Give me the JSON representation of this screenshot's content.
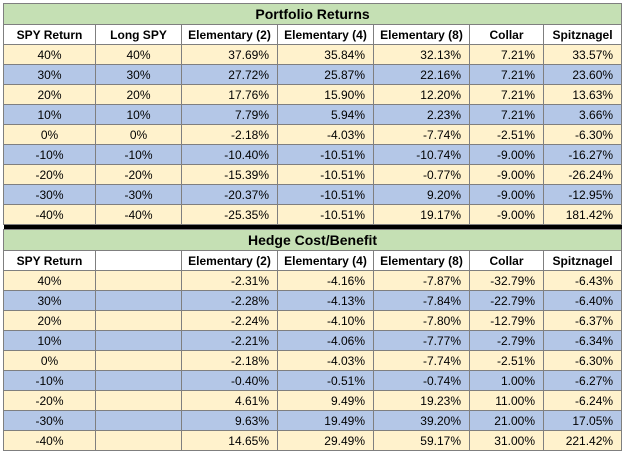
{
  "returns": {
    "title": "Portfolio Returns",
    "headers": [
      "SPY Return",
      "Long SPY",
      "Elementary (2)",
      "Elementary (4)",
      "Elementary (8)",
      "Collar",
      "Spitznagel"
    ],
    "rows": [
      [
        "40%",
        "40%",
        "37.69%",
        "35.84%",
        "32.13%",
        "7.21%",
        "33.57%"
      ],
      [
        "30%",
        "30%",
        "27.72%",
        "25.87%",
        "22.16%",
        "7.21%",
        "23.60%"
      ],
      [
        "20%",
        "20%",
        "17.76%",
        "15.90%",
        "12.20%",
        "7.21%",
        "13.63%"
      ],
      [
        "10%",
        "10%",
        "7.79%",
        "5.94%",
        "2.23%",
        "7.21%",
        "3.66%"
      ],
      [
        "0%",
        "0%",
        "-2.18%",
        "-4.03%",
        "-7.74%",
        "-2.51%",
        "-6.30%"
      ],
      [
        "-10%",
        "-10%",
        "-10.40%",
        "-10.51%",
        "-10.74%",
        "-9.00%",
        "-16.27%"
      ],
      [
        "-20%",
        "-20%",
        "-15.39%",
        "-10.51%",
        "-0.77%",
        "-9.00%",
        "-26.24%"
      ],
      [
        "-30%",
        "-30%",
        "-20.37%",
        "-10.51%",
        "9.20%",
        "-9.00%",
        "-12.95%"
      ],
      [
        "-40%",
        "-40%",
        "-25.35%",
        "-10.51%",
        "19.17%",
        "-9.00%",
        "181.42%"
      ]
    ]
  },
  "hedge": {
    "title": "Hedge Cost/Benefit",
    "headers": [
      "SPY Return",
      "",
      "Elementary (2)",
      "Elementary (4)",
      "Elementary (8)",
      "Collar",
      "Spitznagel"
    ],
    "rows": [
      [
        "40%",
        "",
        "-2.31%",
        "-4.16%",
        "-7.87%",
        "-32.79%",
        "-6.43%"
      ],
      [
        "30%",
        "",
        "-2.28%",
        "-4.13%",
        "-7.84%",
        "-22.79%",
        "-6.40%"
      ],
      [
        "20%",
        "",
        "-2.24%",
        "-4.10%",
        "-7.80%",
        "-12.79%",
        "-6.37%"
      ],
      [
        "10%",
        "",
        "-2.21%",
        "-4.06%",
        "-7.77%",
        "-2.79%",
        "-6.34%"
      ],
      [
        "0%",
        "",
        "-2.18%",
        "-4.03%",
        "-7.74%",
        "-2.51%",
        "-6.30%"
      ],
      [
        "-10%",
        "",
        "-0.40%",
        "-0.51%",
        "-0.74%",
        "1.00%",
        "-6.27%"
      ],
      [
        "-20%",
        "",
        "4.61%",
        "9.49%",
        "19.23%",
        "11.00%",
        "-6.24%"
      ],
      [
        "-30%",
        "",
        "9.63%",
        "19.49%",
        "39.20%",
        "21.00%",
        "17.05%"
      ],
      [
        "-40%",
        "",
        "14.65%",
        "29.49%",
        "59.17%",
        "31.00%",
        "221.42%"
      ]
    ]
  }
}
